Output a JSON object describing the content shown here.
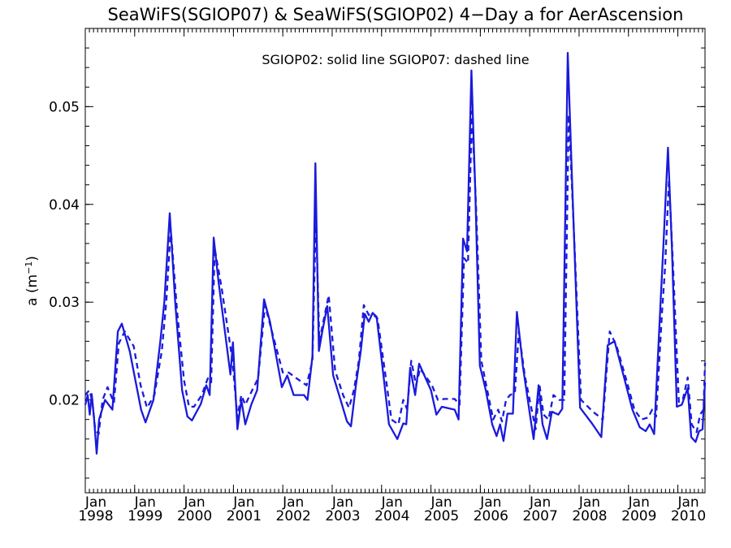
{
  "chart_data": {
    "type": "line",
    "title": "SeaWiFS(SGIOP07) & SeaWiFS(SGIOP02) 4−Day a for AerAscension",
    "annotation": "SGIOP02: solid line   SGIOP07: dashed line",
    "ylabel_main": "a (m",
    "ylabel_sup": "−1",
    "ylabel_close": ")",
    "xlim": [
      1998.0,
      2010.55
    ],
    "ylim": [
      0.0105,
      0.058
    ],
    "x_ticks": [
      {
        "x": 1998,
        "month": "Jan",
        "year": "1998"
      },
      {
        "x": 1999,
        "month": "Jan",
        "year": "1999"
      },
      {
        "x": 2000,
        "month": "Jan",
        "year": "2000"
      },
      {
        "x": 2001,
        "month": "Jan",
        "year": "2001"
      },
      {
        "x": 2002,
        "month": "Jan",
        "year": "2002"
      },
      {
        "x": 2003,
        "month": "Jan",
        "year": "2003"
      },
      {
        "x": 2004,
        "month": "Jan",
        "year": "2004"
      },
      {
        "x": 2005,
        "month": "Jan",
        "year": "2005"
      },
      {
        "x": 2006,
        "month": "Jan",
        "year": "2006"
      },
      {
        "x": 2007,
        "month": "Jan",
        "year": "2007"
      },
      {
        "x": 2008,
        "month": "Jan",
        "year": "2008"
      },
      {
        "x": 2009,
        "month": "Jan",
        "year": "2009"
      },
      {
        "x": 2010,
        "month": "Jan",
        "year": "2010"
      }
    ],
    "y_ticks": [
      {
        "v": 0.02,
        "label": "0.02"
      },
      {
        "v": 0.03,
        "label": "0.03"
      },
      {
        "v": 0.04,
        "label": "0.04"
      },
      {
        "v": 0.05,
        "label": "0.05"
      }
    ],
    "line_color": "#1a1adc",
    "series": [
      {
        "style": "solid",
        "points": [
          [
            1998.0,
            0.0195
          ],
          [
            1998.05,
            0.0205
          ],
          [
            1998.09,
            0.0185
          ],
          [
            1998.13,
            0.0206
          ],
          [
            1998.18,
            0.018
          ],
          [
            1998.23,
            0.0145
          ],
          [
            1998.28,
            0.018
          ],
          [
            1998.4,
            0.02
          ],
          [
            1998.55,
            0.019
          ],
          [
            1998.66,
            0.027
          ],
          [
            1998.74,
            0.0278
          ],
          [
            1998.9,
            0.025
          ],
          [
            1999.13,
            0.019
          ],
          [
            1999.22,
            0.0177
          ],
          [
            1999.38,
            0.02
          ],
          [
            1999.52,
            0.026
          ],
          [
            1999.6,
            0.03
          ],
          [
            1999.71,
            0.0391
          ],
          [
            1999.82,
            0.03
          ],
          [
            1999.96,
            0.021
          ],
          [
            2000.07,
            0.0183
          ],
          [
            2000.16,
            0.0179
          ],
          [
            2000.34,
            0.0196
          ],
          [
            2000.45,
            0.0215
          ],
          [
            2000.52,
            0.0205
          ],
          [
            2000.6,
            0.0366
          ],
          [
            2000.7,
            0.032
          ],
          [
            2000.94,
            0.0226
          ],
          [
            2000.99,
            0.0259
          ],
          [
            2001.08,
            0.017
          ],
          [
            2001.16,
            0.02
          ],
          [
            2001.24,
            0.0175
          ],
          [
            2001.36,
            0.0195
          ],
          [
            2001.48,
            0.021
          ],
          [
            2001.62,
            0.0303
          ],
          [
            2001.74,
            0.028
          ],
          [
            2001.98,
            0.0213
          ],
          [
            2002.09,
            0.0225
          ],
          [
            2002.22,
            0.0205
          ],
          [
            2002.43,
            0.0205
          ],
          [
            2002.5,
            0.02
          ],
          [
            2002.6,
            0.0245
          ],
          [
            2002.66,
            0.0442
          ],
          [
            2002.73,
            0.025
          ],
          [
            2002.8,
            0.027
          ],
          [
            2002.9,
            0.0296
          ],
          [
            2003.02,
            0.0225
          ],
          [
            2003.2,
            0.0195
          ],
          [
            2003.3,
            0.0178
          ],
          [
            2003.38,
            0.0173
          ],
          [
            2003.48,
            0.0215
          ],
          [
            2003.58,
            0.025
          ],
          [
            2003.66,
            0.0288
          ],
          [
            2003.74,
            0.028
          ],
          [
            2003.82,
            0.0289
          ],
          [
            2003.9,
            0.0285
          ],
          [
            2004.05,
            0.022
          ],
          [
            2004.15,
            0.0175
          ],
          [
            2004.32,
            0.016
          ],
          [
            2004.44,
            0.0176
          ],
          [
            2004.5,
            0.0175
          ],
          [
            2004.58,
            0.0233
          ],
          [
            2004.68,
            0.0205
          ],
          [
            2004.76,
            0.0237
          ],
          [
            2005.0,
            0.021
          ],
          [
            2005.11,
            0.0185
          ],
          [
            2005.22,
            0.0193
          ],
          [
            2005.48,
            0.019
          ],
          [
            2005.56,
            0.018
          ],
          [
            2005.65,
            0.0365
          ],
          [
            2005.73,
            0.0352
          ],
          [
            2005.82,
            0.0537
          ],
          [
            2005.9,
            0.041
          ],
          [
            2005.99,
            0.0235
          ],
          [
            2006.11,
            0.021
          ],
          [
            2006.24,
            0.0175
          ],
          [
            2006.33,
            0.0163
          ],
          [
            2006.4,
            0.0175
          ],
          [
            2006.47,
            0.0158
          ],
          [
            2006.55,
            0.0186
          ],
          [
            2006.66,
            0.0186
          ],
          [
            2006.74,
            0.029
          ],
          [
            2006.86,
            0.0235
          ],
          [
            2007.01,
            0.0183
          ],
          [
            2007.08,
            0.016
          ],
          [
            2007.18,
            0.0215
          ],
          [
            2007.26,
            0.0175
          ],
          [
            2007.35,
            0.016
          ],
          [
            2007.45,
            0.0188
          ],
          [
            2007.58,
            0.0185
          ],
          [
            2007.66,
            0.0191
          ],
          [
            2007.77,
            0.0555
          ],
          [
            2007.86,
            0.042
          ],
          [
            2008.02,
            0.0192
          ],
          [
            2008.26,
            0.0176
          ],
          [
            2008.45,
            0.0162
          ],
          [
            2008.58,
            0.0256
          ],
          [
            2008.72,
            0.026
          ],
          [
            2008.9,
            0.0225
          ],
          [
            2009.08,
            0.019
          ],
          [
            2009.23,
            0.0172
          ],
          [
            2009.35,
            0.0168
          ],
          [
            2009.43,
            0.0175
          ],
          [
            2009.52,
            0.0165
          ],
          [
            2009.64,
            0.029
          ],
          [
            2009.71,
            0.036
          ],
          [
            2009.8,
            0.0458
          ],
          [
            2009.88,
            0.0355
          ],
          [
            2009.98,
            0.0193
          ],
          [
            2010.08,
            0.0195
          ],
          [
            2010.2,
            0.0212
          ],
          [
            2010.27,
            0.0162
          ],
          [
            2010.36,
            0.0157
          ],
          [
            2010.43,
            0.0168
          ],
          [
            2010.5,
            0.017
          ],
          [
            2010.55,
            0.0218
          ]
        ]
      },
      {
        "style": "dashed",
        "points": [
          [
            1998.0,
            0.0205
          ],
          [
            1998.08,
            0.021
          ],
          [
            1998.14,
            0.02
          ],
          [
            1998.2,
            0.017
          ],
          [
            1998.27,
            0.0165
          ],
          [
            1998.35,
            0.02
          ],
          [
            1998.45,
            0.0213
          ],
          [
            1998.58,
            0.0197
          ],
          [
            1998.68,
            0.0258
          ],
          [
            1998.8,
            0.027
          ],
          [
            1998.98,
            0.0255
          ],
          [
            1999.12,
            0.0215
          ],
          [
            1999.25,
            0.0192
          ],
          [
            1999.4,
            0.0205
          ],
          [
            1999.55,
            0.025
          ],
          [
            1999.64,
            0.03
          ],
          [
            1999.73,
            0.0375
          ],
          [
            1999.86,
            0.029
          ],
          [
            2000.0,
            0.022
          ],
          [
            2000.1,
            0.0193
          ],
          [
            2000.2,
            0.0193
          ],
          [
            2000.36,
            0.0205
          ],
          [
            2000.48,
            0.0222
          ],
          [
            2000.55,
            0.0218
          ],
          [
            2000.62,
            0.0355
          ],
          [
            2000.76,
            0.0315
          ],
          [
            2000.98,
            0.024
          ],
          [
            2001.08,
            0.0182
          ],
          [
            2001.16,
            0.0205
          ],
          [
            2001.24,
            0.0195
          ],
          [
            2001.38,
            0.021
          ],
          [
            2001.5,
            0.0222
          ],
          [
            2001.64,
            0.0297
          ],
          [
            2001.78,
            0.027
          ],
          [
            2002.0,
            0.0228
          ],
          [
            2002.12,
            0.0228
          ],
          [
            2002.28,
            0.0222
          ],
          [
            2002.48,
            0.0215
          ],
          [
            2002.6,
            0.024
          ],
          [
            2002.67,
            0.039
          ],
          [
            2002.74,
            0.026
          ],
          [
            2002.84,
            0.0285
          ],
          [
            2002.93,
            0.0307
          ],
          [
            2003.06,
            0.023
          ],
          [
            2003.22,
            0.0205
          ],
          [
            2003.34,
            0.0192
          ],
          [
            2003.44,
            0.021
          ],
          [
            2003.54,
            0.024
          ],
          [
            2003.64,
            0.0297
          ],
          [
            2003.74,
            0.0287
          ],
          [
            2003.84,
            0.0287
          ],
          [
            2003.92,
            0.0283
          ],
          [
            2004.08,
            0.0225
          ],
          [
            2004.2,
            0.018
          ],
          [
            2004.34,
            0.0175
          ],
          [
            2004.44,
            0.02
          ],
          [
            2004.52,
            0.019
          ],
          [
            2004.6,
            0.024
          ],
          [
            2004.7,
            0.0215
          ],
          [
            2004.78,
            0.0232
          ],
          [
            2005.02,
            0.0215
          ],
          [
            2005.14,
            0.02
          ],
          [
            2005.28,
            0.0201
          ],
          [
            2005.48,
            0.0201
          ],
          [
            2005.58,
            0.0195
          ],
          [
            2005.67,
            0.0345
          ],
          [
            2005.75,
            0.034
          ],
          [
            2005.83,
            0.0495
          ],
          [
            2005.92,
            0.039
          ],
          [
            2006.02,
            0.024
          ],
          [
            2006.14,
            0.021
          ],
          [
            2006.26,
            0.018
          ],
          [
            2006.36,
            0.019
          ],
          [
            2006.44,
            0.0178
          ],
          [
            2006.52,
            0.02
          ],
          [
            2006.6,
            0.0205
          ],
          [
            2006.7,
            0.0207
          ],
          [
            2006.78,
            0.027
          ],
          [
            2006.9,
            0.0225
          ],
          [
            2007.04,
            0.019
          ],
          [
            2007.12,
            0.017
          ],
          [
            2007.2,
            0.0215
          ],
          [
            2007.28,
            0.0185
          ],
          [
            2007.38,
            0.018
          ],
          [
            2007.48,
            0.0205
          ],
          [
            2007.6,
            0.02
          ],
          [
            2007.7,
            0.02
          ],
          [
            2007.79,
            0.0492
          ],
          [
            2007.88,
            0.039
          ],
          [
            2008.04,
            0.02
          ],
          [
            2008.28,
            0.0188
          ],
          [
            2008.48,
            0.018
          ],
          [
            2008.62,
            0.027
          ],
          [
            2008.76,
            0.0255
          ],
          [
            2008.96,
            0.022
          ],
          [
            2009.12,
            0.019
          ],
          [
            2009.26,
            0.018
          ],
          [
            2009.4,
            0.0182
          ],
          [
            2009.48,
            0.019
          ],
          [
            2009.56,
            0.0183
          ],
          [
            2009.68,
            0.029
          ],
          [
            2009.74,
            0.0335
          ],
          [
            2009.82,
            0.0425
          ],
          [
            2009.9,
            0.034
          ],
          [
            2010.02,
            0.0198
          ],
          [
            2010.1,
            0.02
          ],
          [
            2010.2,
            0.0223
          ],
          [
            2010.28,
            0.0175
          ],
          [
            2010.38,
            0.0167
          ],
          [
            2010.45,
            0.0185
          ],
          [
            2010.52,
            0.019
          ],
          [
            2010.55,
            0.0238
          ]
        ]
      }
    ]
  }
}
